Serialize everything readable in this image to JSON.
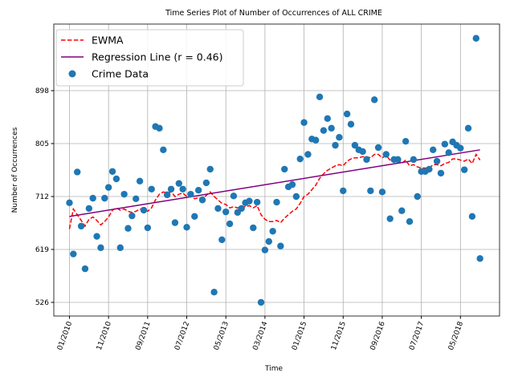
{
  "chart_data": {
    "type": "scatter",
    "title": "Time Series Plot of Number of Occurrences of ALL CRIME",
    "xlabel": "Time",
    "ylabel": "Number of Occurrences",
    "x": [
      "01/2010",
      "02/2010",
      "03/2010",
      "04/2010",
      "05/2010",
      "06/2010",
      "07/2010",
      "08/2010",
      "09/2010",
      "10/2010",
      "11/2010",
      "12/2010",
      "01/2011",
      "02/2011",
      "03/2011",
      "04/2011",
      "05/2011",
      "06/2011",
      "07/2011",
      "08/2011",
      "09/2011",
      "10/2011",
      "11/2011",
      "12/2011",
      "01/2012",
      "02/2012",
      "03/2012",
      "04/2012",
      "05/2012",
      "06/2012",
      "07/2012",
      "08/2012",
      "09/2012",
      "10/2012",
      "11/2012",
      "12/2012",
      "01/2013",
      "02/2013",
      "03/2013",
      "04/2013",
      "05/2013",
      "06/2013",
      "07/2013",
      "08/2013",
      "09/2013",
      "10/2013",
      "11/2013",
      "12/2013",
      "01/2014",
      "02/2014",
      "03/2014",
      "04/2014",
      "05/2014",
      "06/2014",
      "07/2014",
      "08/2014",
      "09/2014",
      "10/2014",
      "11/2014",
      "12/2014",
      "01/2015",
      "02/2015",
      "03/2015",
      "04/2015",
      "05/2015",
      "06/2015",
      "07/2015",
      "08/2015",
      "09/2015",
      "10/2015",
      "11/2015",
      "12/2015",
      "01/2016",
      "02/2016",
      "03/2016",
      "04/2016",
      "05/2016",
      "06/2016",
      "07/2016",
      "08/2016",
      "09/2016",
      "10/2016",
      "11/2016",
      "12/2016",
      "01/2017",
      "02/2017",
      "03/2017",
      "04/2017",
      "05/2017",
      "06/2017",
      "07/2017",
      "08/2017",
      "09/2017",
      "10/2017",
      "11/2017",
      "12/2017",
      "01/2018",
      "02/2018",
      "03/2018",
      "04/2018",
      "05/2018",
      "06/2018",
      "07/2018",
      "08/2018",
      "09/2018",
      "10/2018"
    ],
    "series": [
      {
        "name": "EWMA",
        "type": "line",
        "linestyle": "dashed",
        "color": "#ff0000",
        "values": [
          655,
          690,
          680,
          670,
          660,
          672,
          676,
          670,
          662,
          668,
          676,
          688,
          692,
          688,
          690,
          686,
          684,
          686,
          690,
          690,
          686,
          692,
          706,
          716,
          720,
          718,
          720,
          712,
          716,
          718,
          712,
          714,
          708,
          710,
          708,
          714,
          720,
          712,
          706,
          700,
          698,
          692,
          694,
          692,
          694,
          694,
          696,
          692,
          696,
          680,
          672,
          668,
          668,
          670,
          666,
          674,
          680,
          686,
          690,
          700,
          712,
          716,
          724,
          732,
          744,
          752,
          758,
          762,
          766,
          768,
          766,
          774,
          778,
          780,
          780,
          782,
          782,
          780,
          786,
          786,
          780,
          784,
          776,
          772,
          776,
          770,
          776,
          766,
          768,
          764,
          762,
          762,
          762,
          768,
          768,
          766,
          770,
          772,
          778,
          778,
          776,
          774,
          778,
          770,
          786,
          776
        ]
      },
      {
        "name": "Regression Line (r = 0.46)",
        "type": "line",
        "linestyle": "solid",
        "color": "#800080",
        "x": [
          "01/2010",
          "10/2018"
        ],
        "values": [
          677,
          794
        ]
      },
      {
        "name": "Crime Data",
        "type": "scatter",
        "color": "#1f77b4",
        "values": [
          701,
          611,
          755,
          660,
          585,
          691,
          709,
          642,
          622,
          709,
          728,
          756,
          743,
          622,
          716,
          656,
          678,
          708,
          739,
          688,
          657,
          725,
          835,
          832,
          794,
          715,
          725,
          666,
          735,
          725,
          658,
          716,
          677,
          723,
          706,
          736,
          760,
          544,
          691,
          636,
          685,
          664,
          713,
          684,
          691,
          701,
          704,
          657,
          702,
          526,
          618,
          633,
          651,
          702,
          625,
          760,
          729,
          733,
          712,
          778,
          842,
          786,
          813,
          811,
          887,
          828,
          849,
          832,
          802,
          816,
          722,
          857,
          839,
          802,
          794,
          791,
          777,
          722,
          882,
          798,
          720,
          786,
          673,
          777,
          777,
          687,
          809,
          668,
          777,
          712,
          756,
          756,
          760,
          794,
          774,
          753,
          804,
          789,
          808,
          802,
          797,
          759,
          832,
          677,
          990,
          603
        ]
      }
    ],
    "xlim": [
      "09/2009",
      "03/2019"
    ],
    "xticks": [
      "01/2010",
      "11/2010",
      "09/2011",
      "07/2012",
      "05/2013",
      "03/2014",
      "01/2015",
      "11/2015",
      "09/2016",
      "07/2017",
      "05/2018"
    ],
    "ylim": [
      502,
      1015
    ],
    "yticks": [
      526,
      619,
      712,
      805,
      898
    ],
    "grid": true,
    "legend": "upper-left"
  }
}
